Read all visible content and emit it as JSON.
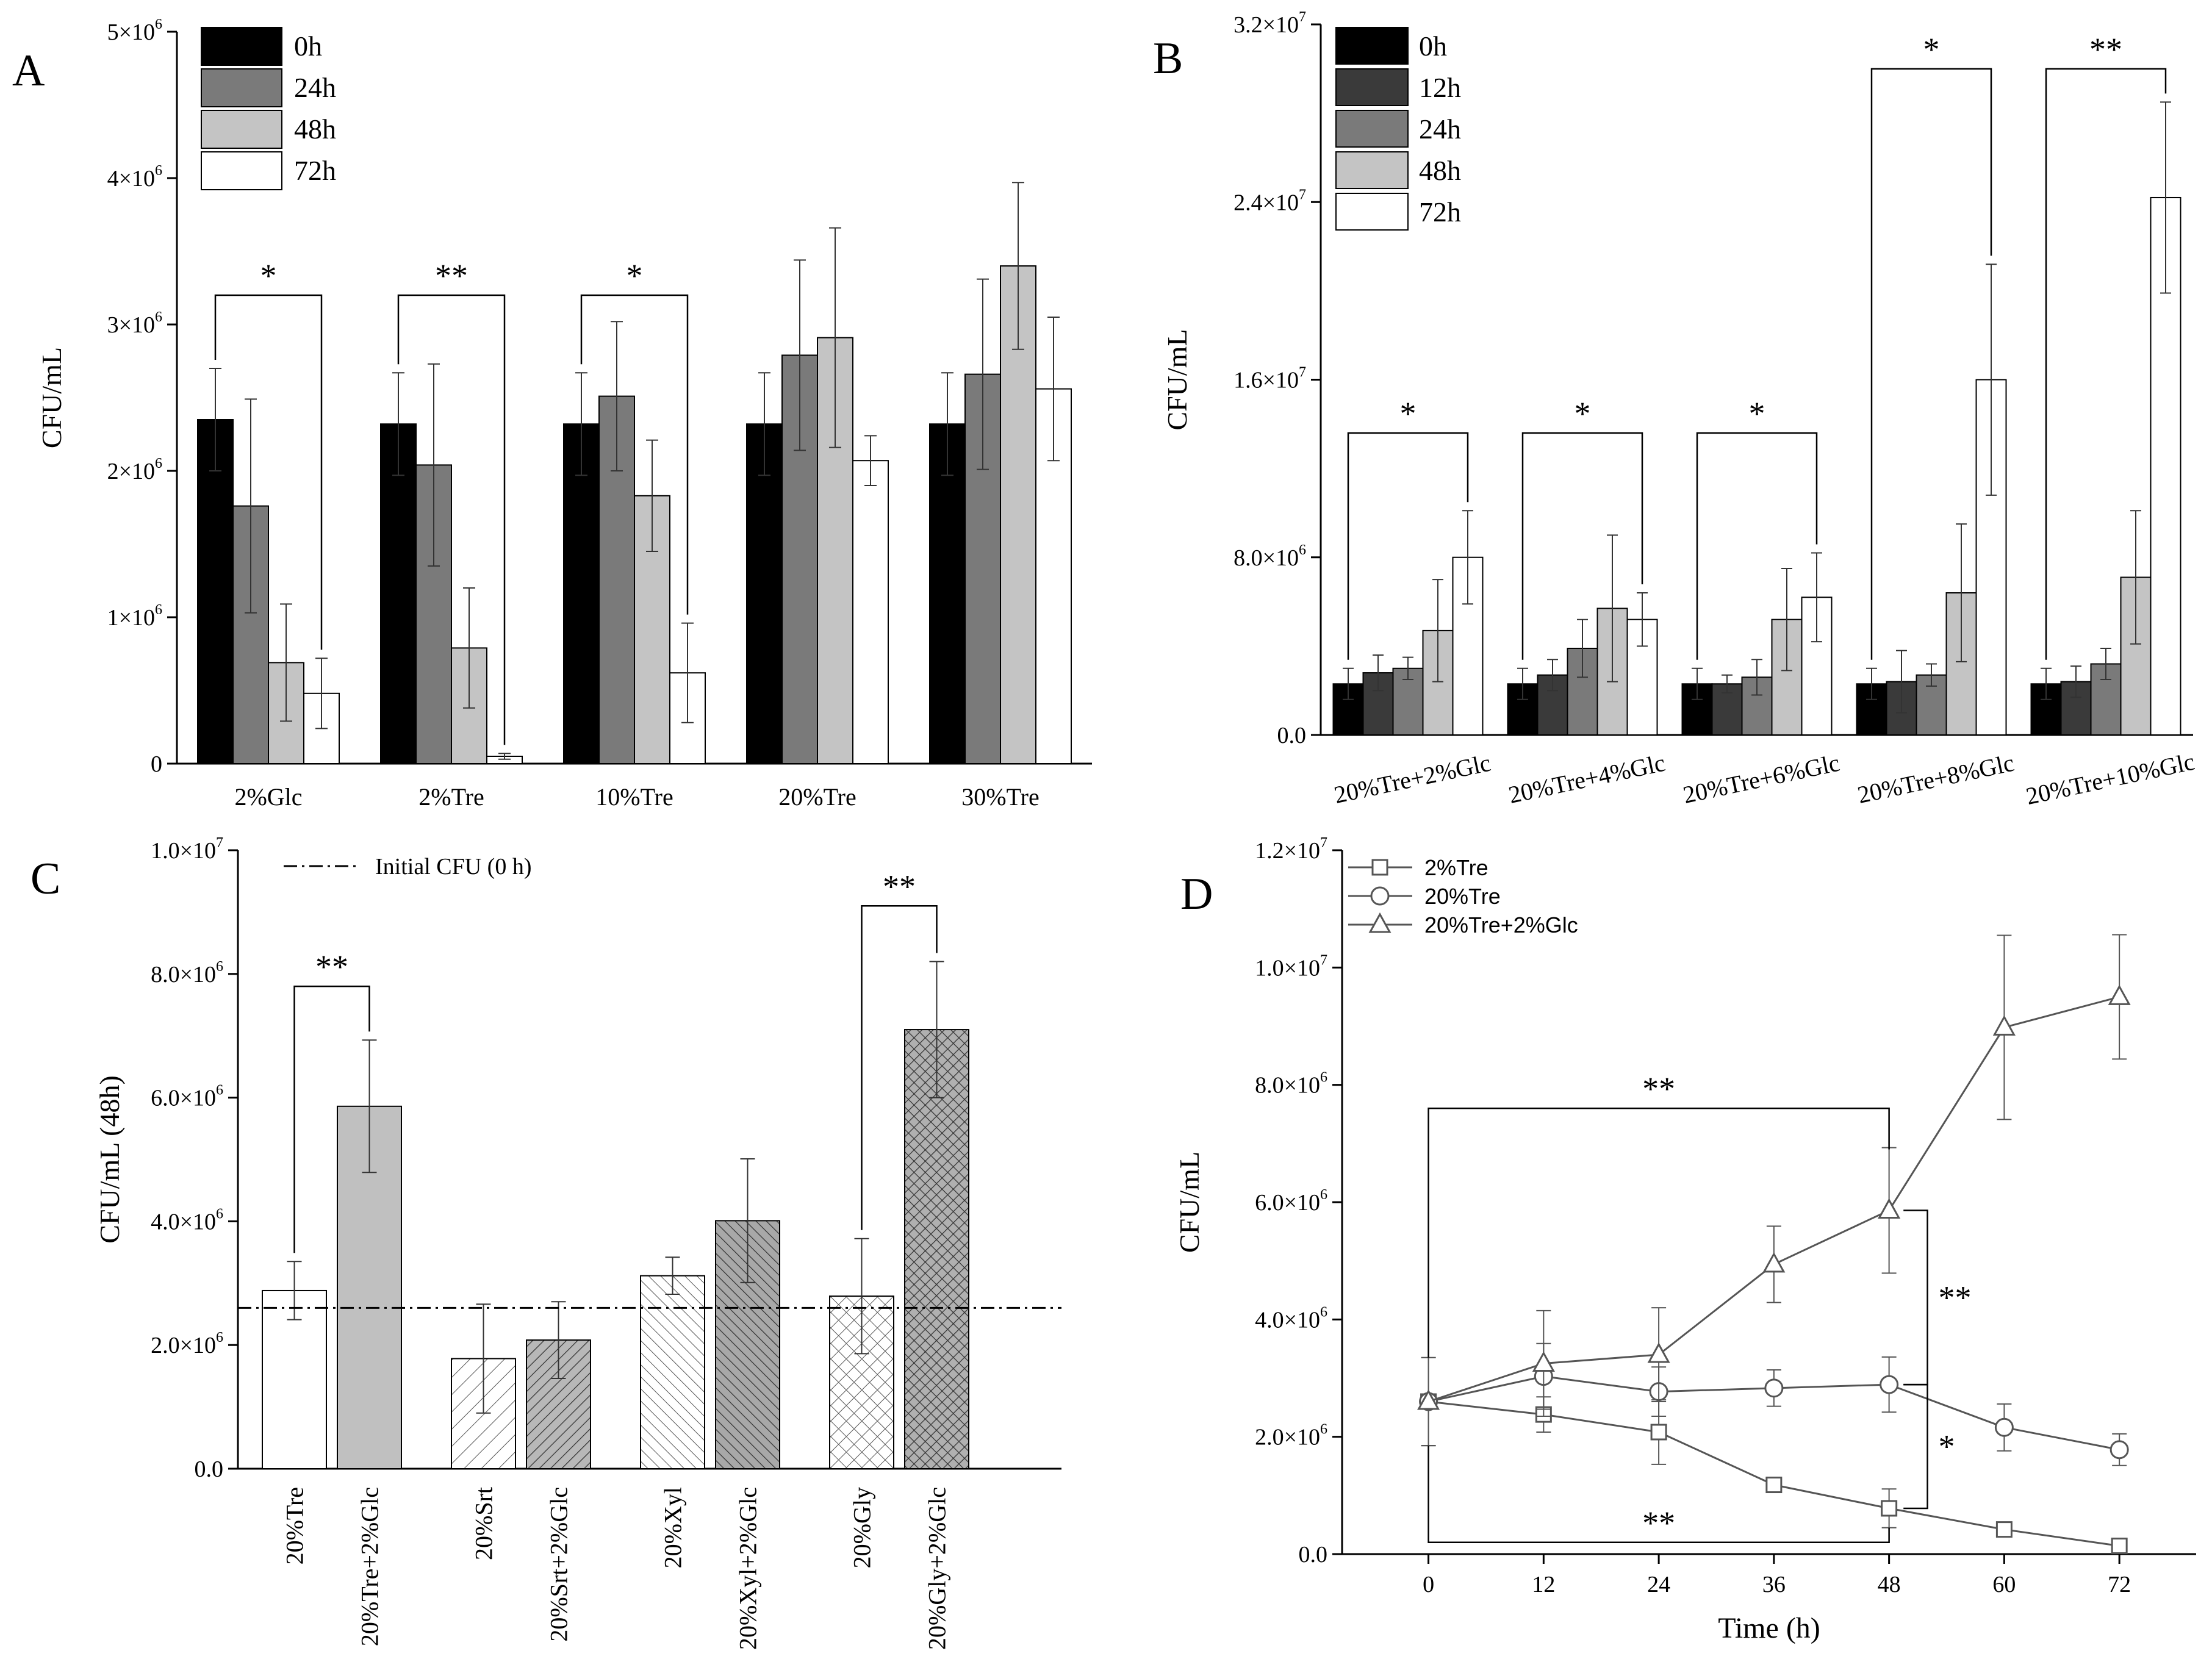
{
  "chart_data": [
    {
      "panel": "A",
      "type": "bar",
      "ylabel": "CFU/mL",
      "ylim": [
        0,
        5000000
      ],
      "yticks": [
        {
          "v": 0,
          "label": "0",
          "sup": ""
        },
        {
          "v": 1000000,
          "label": "1×10",
          "sup": "6"
        },
        {
          "v": 2000000,
          "label": "2×10",
          "sup": "6"
        },
        {
          "v": 3000000,
          "label": "3×10",
          "sup": "6"
        },
        {
          "v": 4000000,
          "label": "4×10",
          "sup": "6"
        },
        {
          "v": 5000000,
          "label": "5×10",
          "sup": "6"
        }
      ],
      "categories": [
        "2%Glc",
        "2%Tre",
        "10%Tre",
        "20%Tre",
        "30%Tre"
      ],
      "series": [
        {
          "name": "0h",
          "color": "#000000",
          "values": [
            2350000,
            2320000,
            2320000,
            2320000,
            2320000
          ],
          "errors": [
            350000,
            350000,
            350000,
            350000,
            350000
          ]
        },
        {
          "name": "24h",
          "color": "#7a7a7a",
          "values": [
            1760000,
            2040000,
            2510000,
            2790000,
            2660000
          ],
          "errors": [
            730000,
            690000,
            510000,
            650000,
            650000
          ]
        },
        {
          "name": "48h",
          "color": "#c4c4c4",
          "values": [
            690000,
            790000,
            1830000,
            2910000,
            3400000
          ],
          "errors": [
            400000,
            410000,
            380000,
            750000,
            570000
          ]
        },
        {
          "name": "72h",
          "color": "#ffffff",
          "values": [
            480000,
            50000,
            620000,
            2070000,
            2560000
          ],
          "errors": [
            240000,
            20000,
            340000,
            170000,
            490000
          ]
        }
      ],
      "significance": [
        {
          "label": "*",
          "group": 0,
          "from": 0,
          "to": 3,
          "y": 3200000
        },
        {
          "label": "**",
          "group": 1,
          "from": 0,
          "to": 3,
          "y": 3200000
        },
        {
          "label": "*",
          "group": 2,
          "from": 0,
          "to": 3,
          "y": 3200000
        }
      ]
    },
    {
      "panel": "B",
      "type": "bar",
      "ylabel": "CFU/mL",
      "ylim": [
        0,
        32000000
      ],
      "yticks": [
        {
          "v": 0,
          "label": "0.0",
          "sup": ""
        },
        {
          "v": 8000000,
          "label": "8.0×10",
          "sup": "6"
        },
        {
          "v": 16000000,
          "label": "1.6×10",
          "sup": "7"
        },
        {
          "v": 24000000,
          "label": "2.4×10",
          "sup": "7"
        },
        {
          "v": 32000000,
          "label": "3.2×10",
          "sup": "7"
        }
      ],
      "categories": [
        "20%Tre+2%Glc",
        "20%Tre+4%Glc",
        "20%Tre+6%Glc",
        "20%Tre+8%Glc",
        "20%Tre+10%Glc"
      ],
      "series": [
        {
          "name": "0h",
          "color": "#000000",
          "values": [
            2300000,
            2300000,
            2300000,
            2300000,
            2300000
          ],
          "errors": [
            700000,
            700000,
            700000,
            700000,
            700000
          ]
        },
        {
          "name": "12h",
          "color": "#3a3a3a",
          "values": [
            2800000,
            2700000,
            2300000,
            2400000,
            2400000
          ],
          "errors": [
            800000,
            700000,
            400000,
            1400000,
            700000
          ]
        },
        {
          "name": "24h",
          "color": "#7a7a7a",
          "values": [
            3000000,
            3900000,
            2600000,
            2700000,
            3200000
          ],
          "errors": [
            500000,
            1300000,
            800000,
            500000,
            700000
          ]
        },
        {
          "name": "48h",
          "color": "#c4c4c4",
          "values": [
            4700000,
            5700000,
            5200000,
            6400000,
            7100000
          ],
          "errors": [
            2300000,
            3300000,
            2300000,
            3100000,
            3000000
          ]
        },
        {
          "name": "72h",
          "color": "#ffffff",
          "values": [
            8000000,
            5200000,
            6200000,
            16000000,
            24200000
          ],
          "errors": [
            2100000,
            1200000,
            2000000,
            5200000,
            4300000
          ]
        }
      ],
      "significance": [
        {
          "label": "*",
          "group": 0,
          "from": 0,
          "to": 4,
          "y": 13600000
        },
        {
          "label": "*",
          "group": 1,
          "from": 0,
          "to": 4,
          "y": 13600000
        },
        {
          "label": "*",
          "group": 2,
          "from": 0,
          "to": 4,
          "y": 13600000
        },
        {
          "label": "*",
          "group": 3,
          "from": 0,
          "to": 4,
          "y": 30000000
        },
        {
          "label": "**",
          "group": 4,
          "from": 0,
          "to": 4,
          "y": 30000000
        }
      ]
    },
    {
      "panel": "C",
      "type": "bar",
      "ylabel": "CFU/mL (48h)",
      "ylim": [
        0,
        10000000
      ],
      "yticks": [
        {
          "v": 0,
          "label": "0.0",
          "sup": ""
        },
        {
          "v": 2000000,
          "label": "2.0×10",
          "sup": "6"
        },
        {
          "v": 4000000,
          "label": "4.0×10",
          "sup": "6"
        },
        {
          "v": 6000000,
          "label": "6.0×10",
          "sup": "6"
        },
        {
          "v": 8000000,
          "label": "8.0×10",
          "sup": "6"
        },
        {
          "v": 10000000,
          "label": "1.0×10",
          "sup": "7"
        }
      ],
      "categories": [
        "20%Tre",
        "20%Tre+2%Glc",
        "20%Srt",
        "20%Srt+2%Glc",
        "20%Xyl",
        "20%Xyl+2%Glc",
        "20%Gly",
        "20%Gly+2%Glc"
      ],
      "values": [
        2880000,
        5860000,
        1780000,
        2080000,
        3120000,
        4010000,
        2790000,
        7100000
      ],
      "errors": [
        470000,
        1070000,
        880000,
        620000,
        300000,
        1000000,
        930000,
        1100000
      ],
      "fills": [
        "#ffffff",
        "#c0c0c0",
        "hatch-light-fwd",
        "hatch-dense-fwd",
        "hatch-light-back",
        "hatch-dense-back",
        "crosshatch-light",
        "crosshatch-dense"
      ],
      "reference_line": {
        "value": 2600000,
        "label": "Initial CFU (0 h)"
      },
      "significance": [
        {
          "label": "**",
          "from": 0,
          "to": 1,
          "y": 7800000
        },
        {
          "label": "**",
          "from": 6,
          "to": 7,
          "y": 9100000
        }
      ]
    },
    {
      "panel": "D",
      "type": "line",
      "xlabel": "Time (h)",
      "ylabel": "CFU/mL",
      "xlim": [
        -9,
        80
      ],
      "ylim": [
        0,
        12000000
      ],
      "x": [
        0,
        12,
        24,
        36,
        48,
        60,
        72
      ],
      "xticks": [
        "0",
        "12",
        "24",
        "36",
        "48",
        "60",
        "72"
      ],
      "yticks": [
        {
          "v": 0,
          "label": "0.0",
          "sup": ""
        },
        {
          "v": 2000000,
          "label": "2.0×10",
          "sup": "6"
        },
        {
          "v": 4000000,
          "label": "4.0×10",
          "sup": "6"
        },
        {
          "v": 6000000,
          "label": "6.0×10",
          "sup": "6"
        },
        {
          "v": 8000000,
          "label": "8.0×10",
          "sup": "6"
        },
        {
          "v": 10000000,
          "label": "1.0×10",
          "sup": "7"
        },
        {
          "v": 12000000,
          "label": "1.2×10",
          "sup": "7"
        }
      ],
      "series": [
        {
          "name": "2%Tre",
          "marker": "square",
          "values": [
            2600000,
            2380000,
            2080000,
            1180000,
            780000,
            420000,
            140000
          ],
          "errors": [
            750000,
            300000,
            550000,
            130000,
            330000,
            70000,
            30000
          ]
        },
        {
          "name": "20%Tre",
          "marker": "circle",
          "values": [
            2600000,
            3030000,
            2770000,
            2830000,
            2890000,
            2160000,
            1780000
          ],
          "errors": [
            750000,
            560000,
            420000,
            310000,
            470000,
            400000,
            270000
          ]
        },
        {
          "name": "20%Tre+2%Glc",
          "marker": "triangle",
          "values": [
            2600000,
            3250000,
            3400000,
            4940000,
            5860000,
            8980000,
            9500000
          ],
          "errors": [
            750000,
            900000,
            800000,
            650000,
            1070000,
            1570000,
            1060000
          ]
        }
      ],
      "significance": [
        {
          "label": "**",
          "orientation": "top",
          "x_from": 0,
          "x_to": 48,
          "y": 7600000
        },
        {
          "label": "**",
          "orientation": "bottom",
          "x_from": 0,
          "x_to": 48,
          "y": 200000
        },
        {
          "label": "**",
          "orientation": "right",
          "x": 52,
          "y_from": 5860000,
          "y_to": 2890000
        },
        {
          "label": "*",
          "orientation": "right",
          "x": 52,
          "y_from": 2890000,
          "y_to": 780000
        }
      ]
    }
  ],
  "panel_labels": [
    "A",
    "B",
    "C",
    "D"
  ]
}
